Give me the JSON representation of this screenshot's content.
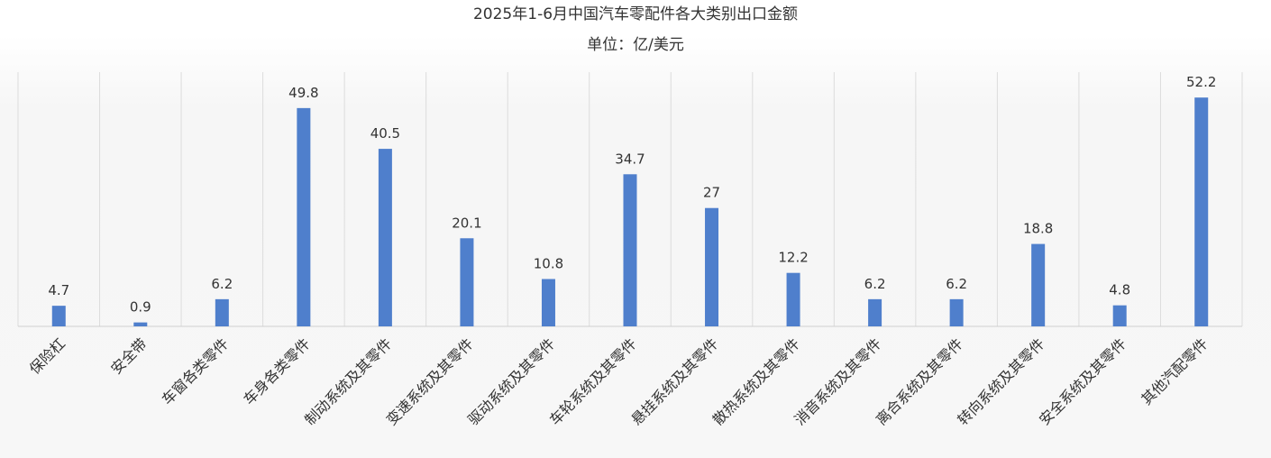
{
  "chart_data": {
    "type": "bar",
    "title": "2025年1-6月中国汽车零配件各大类别出口金额",
    "subtitle": "单位：亿/美元",
    "categories": [
      "保险杠",
      "安全带",
      "车窗各类零件",
      "车身各类零件",
      "制动系统及其零件",
      "变速系统及其零件",
      "驱动系统及其零件",
      "车轮系统及其零件",
      "悬挂系统及其零件",
      "散热系统及其零件",
      "消音系统及其零件",
      "离合系统及其零件",
      "转向系统及其零件",
      "安全系统及其零件",
      "其他汽配零件"
    ],
    "values": [
      4.7,
      0.9,
      6.2,
      49.8,
      40.5,
      20.1,
      10.8,
      34.7,
      27,
      12.2,
      6.2,
      6.2,
      18.8,
      4.8,
      52.2
    ],
    "value_labels": [
      "4.7",
      "0.9",
      "6.2",
      "49.8",
      "40.5",
      "20.1",
      "10.8",
      "34.7",
      "27",
      "12.2",
      "6.2",
      "6.2",
      "18.8",
      "4.8",
      "52.2"
    ],
    "ylim": [
      0,
      60
    ],
    "bar_color": "#4f7fcc",
    "grid": true,
    "legend": "none"
  }
}
